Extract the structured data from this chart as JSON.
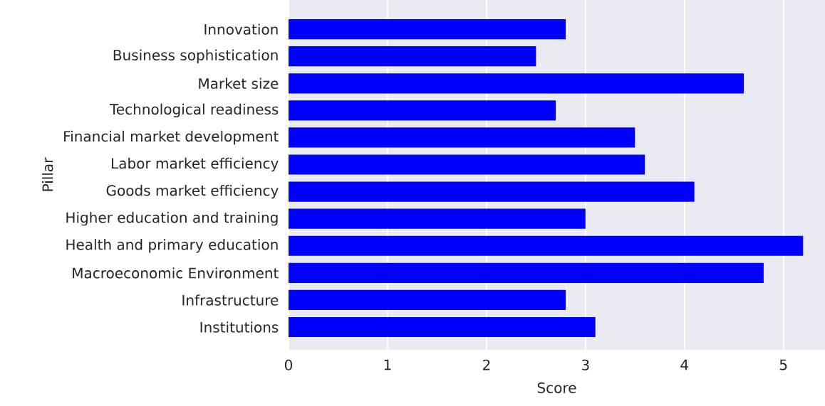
{
  "chart_data": {
    "type": "bar",
    "orientation": "horizontal",
    "xlabel": "Score",
    "ylabel": "Pillar",
    "categories": [
      "Innovation",
      "Business sophistication",
      "Market size",
      "Technological readiness",
      "Financial market development",
      "Labor market efficiency",
      "Goods market efficiency",
      "Higher education and training",
      "Health and primary education",
      "Macroeconomic Environment",
      "Infrastructure",
      "Institutions"
    ],
    "values": [
      2.8,
      2.5,
      4.6,
      2.7,
      3.5,
      3.6,
      4.1,
      3.0,
      5.2,
      4.8,
      2.8,
      3.1
    ],
    "color": "#0000ff",
    "xlim": [
      0,
      5.42
    ],
    "xticks": [
      0,
      1,
      2,
      3,
      4,
      5
    ],
    "grid": "x"
  }
}
